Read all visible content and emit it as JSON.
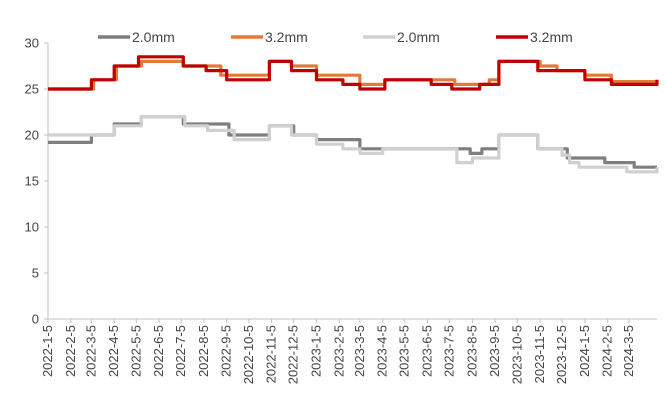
{
  "chart_data": {
    "type": "line",
    "title": "",
    "xlabel": "",
    "ylabel": "",
    "ylim": [
      0,
      30
    ],
    "yticks": [
      0,
      5,
      10,
      15,
      20,
      25,
      30
    ],
    "grid": false,
    "legend_position": "top",
    "xtick_labels": [
      "2022-1-5",
      "2022-2-5",
      "2022-3-5",
      "2022-4-5",
      "2022-5-5",
      "2022-6-5",
      "2022-7-5",
      "2022-8-5",
      "2022-9-5",
      "2022-10-5",
      "2022-11-5",
      "2022-12-5",
      "2023-1-5",
      "2023-2-5",
      "2023-3-5",
      "2023-4-5",
      "2023-5-5",
      "2023-6-5",
      "2023-7-5",
      "2023-8-5",
      "2023-9-5",
      "2023-10-5",
      "2023-11-5",
      "2023-12-5",
      "2024-1-5",
      "2024-2-5",
      "2024-3-5"
    ],
    "x_range": [
      "2022-01-05",
      "2024-04-12"
    ],
    "series": [
      {
        "name": "2.0mm",
        "color": "#7f7f7f",
        "points": [
          [
            "2022-01-05",
            19.2
          ],
          [
            "2022-02-20",
            19.2
          ],
          [
            "2022-03-05",
            20
          ],
          [
            "2022-03-28",
            20
          ],
          [
            "2022-04-05",
            21.2
          ],
          [
            "2022-05-02",
            21.2
          ],
          [
            "2022-05-12",
            22
          ],
          [
            "2022-07-05",
            22
          ],
          [
            "2022-07-08",
            21.2
          ],
          [
            "2022-09-02",
            21.2
          ],
          [
            "2022-09-08",
            20
          ],
          [
            "2022-10-28",
            20
          ],
          [
            "2022-11-02",
            21
          ],
          [
            "2022-11-28",
            21
          ],
          [
            "2022-12-05",
            20
          ],
          [
            "2022-12-28",
            20
          ],
          [
            "2023-01-05",
            19.5
          ],
          [
            "2023-03-02",
            19.5
          ],
          [
            "2023-03-05",
            18.5
          ],
          [
            "2023-04-05",
            18.5
          ],
          [
            "2023-07-28",
            18.5
          ],
          [
            "2023-08-02",
            18
          ],
          [
            "2023-08-12",
            18
          ],
          [
            "2023-08-18",
            18.5
          ],
          [
            "2023-08-30",
            18.5
          ],
          [
            "2023-09-10",
            20
          ],
          [
            "2023-10-25",
            20
          ],
          [
            "2023-11-02",
            18.5
          ],
          [
            "2023-12-05",
            18.5
          ],
          [
            "2023-12-12",
            17.5
          ],
          [
            "2024-01-20",
            17.5
          ],
          [
            "2024-02-01",
            17
          ],
          [
            "2024-03-05",
            17
          ],
          [
            "2024-03-12",
            16.5
          ],
          [
            "2024-04-12",
            16.5
          ]
        ]
      },
      {
        "name": "3.2mm",
        "color": "#e07b39",
        "points": [
          [
            "2022-01-05",
            25
          ],
          [
            "2022-03-05",
            25
          ],
          [
            "2022-03-08",
            26
          ],
          [
            "2022-04-05",
            26
          ],
          [
            "2022-04-08",
            27.5
          ],
          [
            "2022-05-08",
            27.5
          ],
          [
            "2022-05-12",
            28
          ],
          [
            "2022-07-02",
            28
          ],
          [
            "2022-07-08",
            27.5
          ],
          [
            "2022-08-20",
            27.5
          ],
          [
            "2022-08-28",
            26.5
          ],
          [
            "2022-10-28",
            26.5
          ],
          [
            "2022-11-02",
            28
          ],
          [
            "2022-11-28",
            28
          ],
          [
            "2022-12-02",
            27.5
          ],
          [
            "2022-12-28",
            27.5
          ],
          [
            "2023-01-05",
            26.5
          ],
          [
            "2023-03-02",
            26.5
          ],
          [
            "2023-03-05",
            25.5
          ],
          [
            "2023-04-05",
            25.5
          ],
          [
            "2023-04-08",
            26
          ],
          [
            "2023-06-25",
            26
          ],
          [
            "2023-07-05",
            26
          ],
          [
            "2023-07-12",
            25.5
          ],
          [
            "2023-08-20",
            25.5
          ],
          [
            "2023-08-28",
            26
          ],
          [
            "2023-09-10",
            28
          ],
          [
            "2023-10-25",
            28
          ],
          [
            "2023-11-05",
            27.5
          ],
          [
            "2023-11-20",
            27.5
          ],
          [
            "2023-11-28",
            27
          ],
          [
            "2023-12-20",
            27
          ],
          [
            "2024-01-05",
            26.5
          ],
          [
            "2024-02-05",
            26.5
          ],
          [
            "2024-02-10",
            25.8
          ],
          [
            "2024-04-12",
            25.8
          ]
        ]
      },
      {
        "name": "2.0mm",
        "color": "#d0d0d0",
        "points": [
          [
            "2022-01-05",
            20
          ],
          [
            "2022-03-28",
            20
          ],
          [
            "2022-04-05",
            21
          ],
          [
            "2022-05-02",
            21
          ],
          [
            "2022-05-12",
            22
          ],
          [
            "2022-07-05",
            22
          ],
          [
            "2022-07-10",
            21
          ],
          [
            "2022-08-05",
            21
          ],
          [
            "2022-08-10",
            20.5
          ],
          [
            "2022-09-10",
            20.5
          ],
          [
            "2022-09-15",
            19.5
          ],
          [
            "2022-10-28",
            19.5
          ],
          [
            "2022-11-02",
            21
          ],
          [
            "2022-11-28",
            21
          ],
          [
            "2022-12-02",
            20
          ],
          [
            "2022-12-28",
            20
          ],
          [
            "2023-01-05",
            19
          ],
          [
            "2023-02-05",
            19
          ],
          [
            "2023-02-10",
            18.5
          ],
          [
            "2023-03-05",
            18
          ],
          [
            "2023-04-05",
            18.5
          ],
          [
            "2023-07-10",
            18.5
          ],
          [
            "2023-07-15",
            17
          ],
          [
            "2023-08-01",
            17
          ],
          [
            "2023-08-05",
            17.5
          ],
          [
            "2023-08-28",
            17.5
          ],
          [
            "2023-09-10",
            20
          ],
          [
            "2023-10-25",
            20
          ],
          [
            "2023-11-02",
            18.5
          ],
          [
            "2023-11-28",
            18.5
          ],
          [
            "2023-12-05",
            17.8
          ],
          [
            "2023-12-15",
            17
          ],
          [
            "2023-12-28",
            16.5
          ],
          [
            "2024-02-28",
            16.5
          ],
          [
            "2024-03-02",
            16
          ],
          [
            "2024-04-05",
            16
          ],
          [
            "2024-04-12",
            16.5
          ]
        ]
      },
      {
        "name": "3.2mm",
        "color": "#c00000",
        "points": [
          [
            "2022-01-05",
            25
          ],
          [
            "2022-02-28",
            25
          ],
          [
            "2022-03-05",
            26
          ],
          [
            "2022-03-31",
            26
          ],
          [
            "2022-04-05",
            27.5
          ],
          [
            "2022-05-01",
            27.5
          ],
          [
            "2022-05-08",
            28.5
          ],
          [
            "2022-07-05",
            28.5
          ],
          [
            "2022-07-08",
            27.5
          ],
          [
            "2022-08-05",
            27.5
          ],
          [
            "2022-08-08",
            27
          ],
          [
            "2022-09-01",
            27
          ],
          [
            "2022-09-05",
            26
          ],
          [
            "2022-10-28",
            26
          ],
          [
            "2022-11-02",
            28
          ],
          [
            "2022-11-28",
            28
          ],
          [
            "2022-12-02",
            27
          ],
          [
            "2022-12-28",
            27
          ],
          [
            "2023-01-05",
            26
          ],
          [
            "2023-02-05",
            26
          ],
          [
            "2023-02-10",
            25.5
          ],
          [
            "2023-03-02",
            25.5
          ],
          [
            "2023-03-05",
            25
          ],
          [
            "2023-04-02",
            25
          ],
          [
            "2023-04-08",
            26
          ],
          [
            "2023-06-05",
            26
          ],
          [
            "2023-06-10",
            25.5
          ],
          [
            "2023-07-02",
            25.5
          ],
          [
            "2023-07-08",
            25
          ],
          [
            "2023-08-10",
            25
          ],
          [
            "2023-08-15",
            25.5
          ],
          [
            "2023-08-28",
            25.5
          ],
          [
            "2023-09-10",
            28
          ],
          [
            "2023-10-25",
            28
          ],
          [
            "2023-11-02",
            27
          ],
          [
            "2023-12-28",
            27
          ],
          [
            "2024-01-05",
            26
          ],
          [
            "2024-02-05",
            26
          ],
          [
            "2024-02-10",
            25.5
          ],
          [
            "2024-04-05",
            25.5
          ],
          [
            "2024-04-12",
            26
          ]
        ]
      }
    ]
  }
}
